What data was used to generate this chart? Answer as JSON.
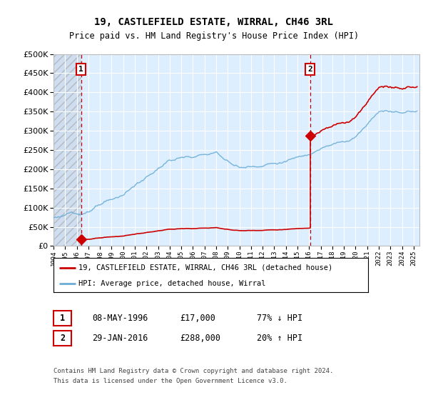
{
  "title": "19, CASTLEFIELD ESTATE, WIRRAL, CH46 3RL",
  "subtitle": "Price paid vs. HM Land Registry's House Price Index (HPI)",
  "sale1": {
    "date": 1996.37,
    "price": 17000,
    "label": "1",
    "pct": "77% ↓ HPI",
    "date_str": "08-MAY-1996"
  },
  "sale2": {
    "date": 2016.08,
    "price": 288000,
    "label": "2",
    "pct": "20% ↑ HPI",
    "date_str": "29-JAN-2016"
  },
  "hpi_color": "#6baed6",
  "sale_color": "#cc0000",
  "legend1": "19, CASTLEFIELD ESTATE, WIRRAL, CH46 3RL (detached house)",
  "legend2": "HPI: Average price, detached house, Wirral",
  "footer1": "Contains HM Land Registry data © Crown copyright and database right 2024.",
  "footer2": "This data is licensed under the Open Government Licence v3.0.",
  "ylim": [
    0,
    500000
  ],
  "xlim": [
    1994.0,
    2025.5
  ],
  "yticks": [
    0,
    50000,
    100000,
    150000,
    200000,
    250000,
    300000,
    350000,
    400000,
    450000,
    500000
  ],
  "background_color": "#ddeeff",
  "hatch_color": "#c8d8e8"
}
